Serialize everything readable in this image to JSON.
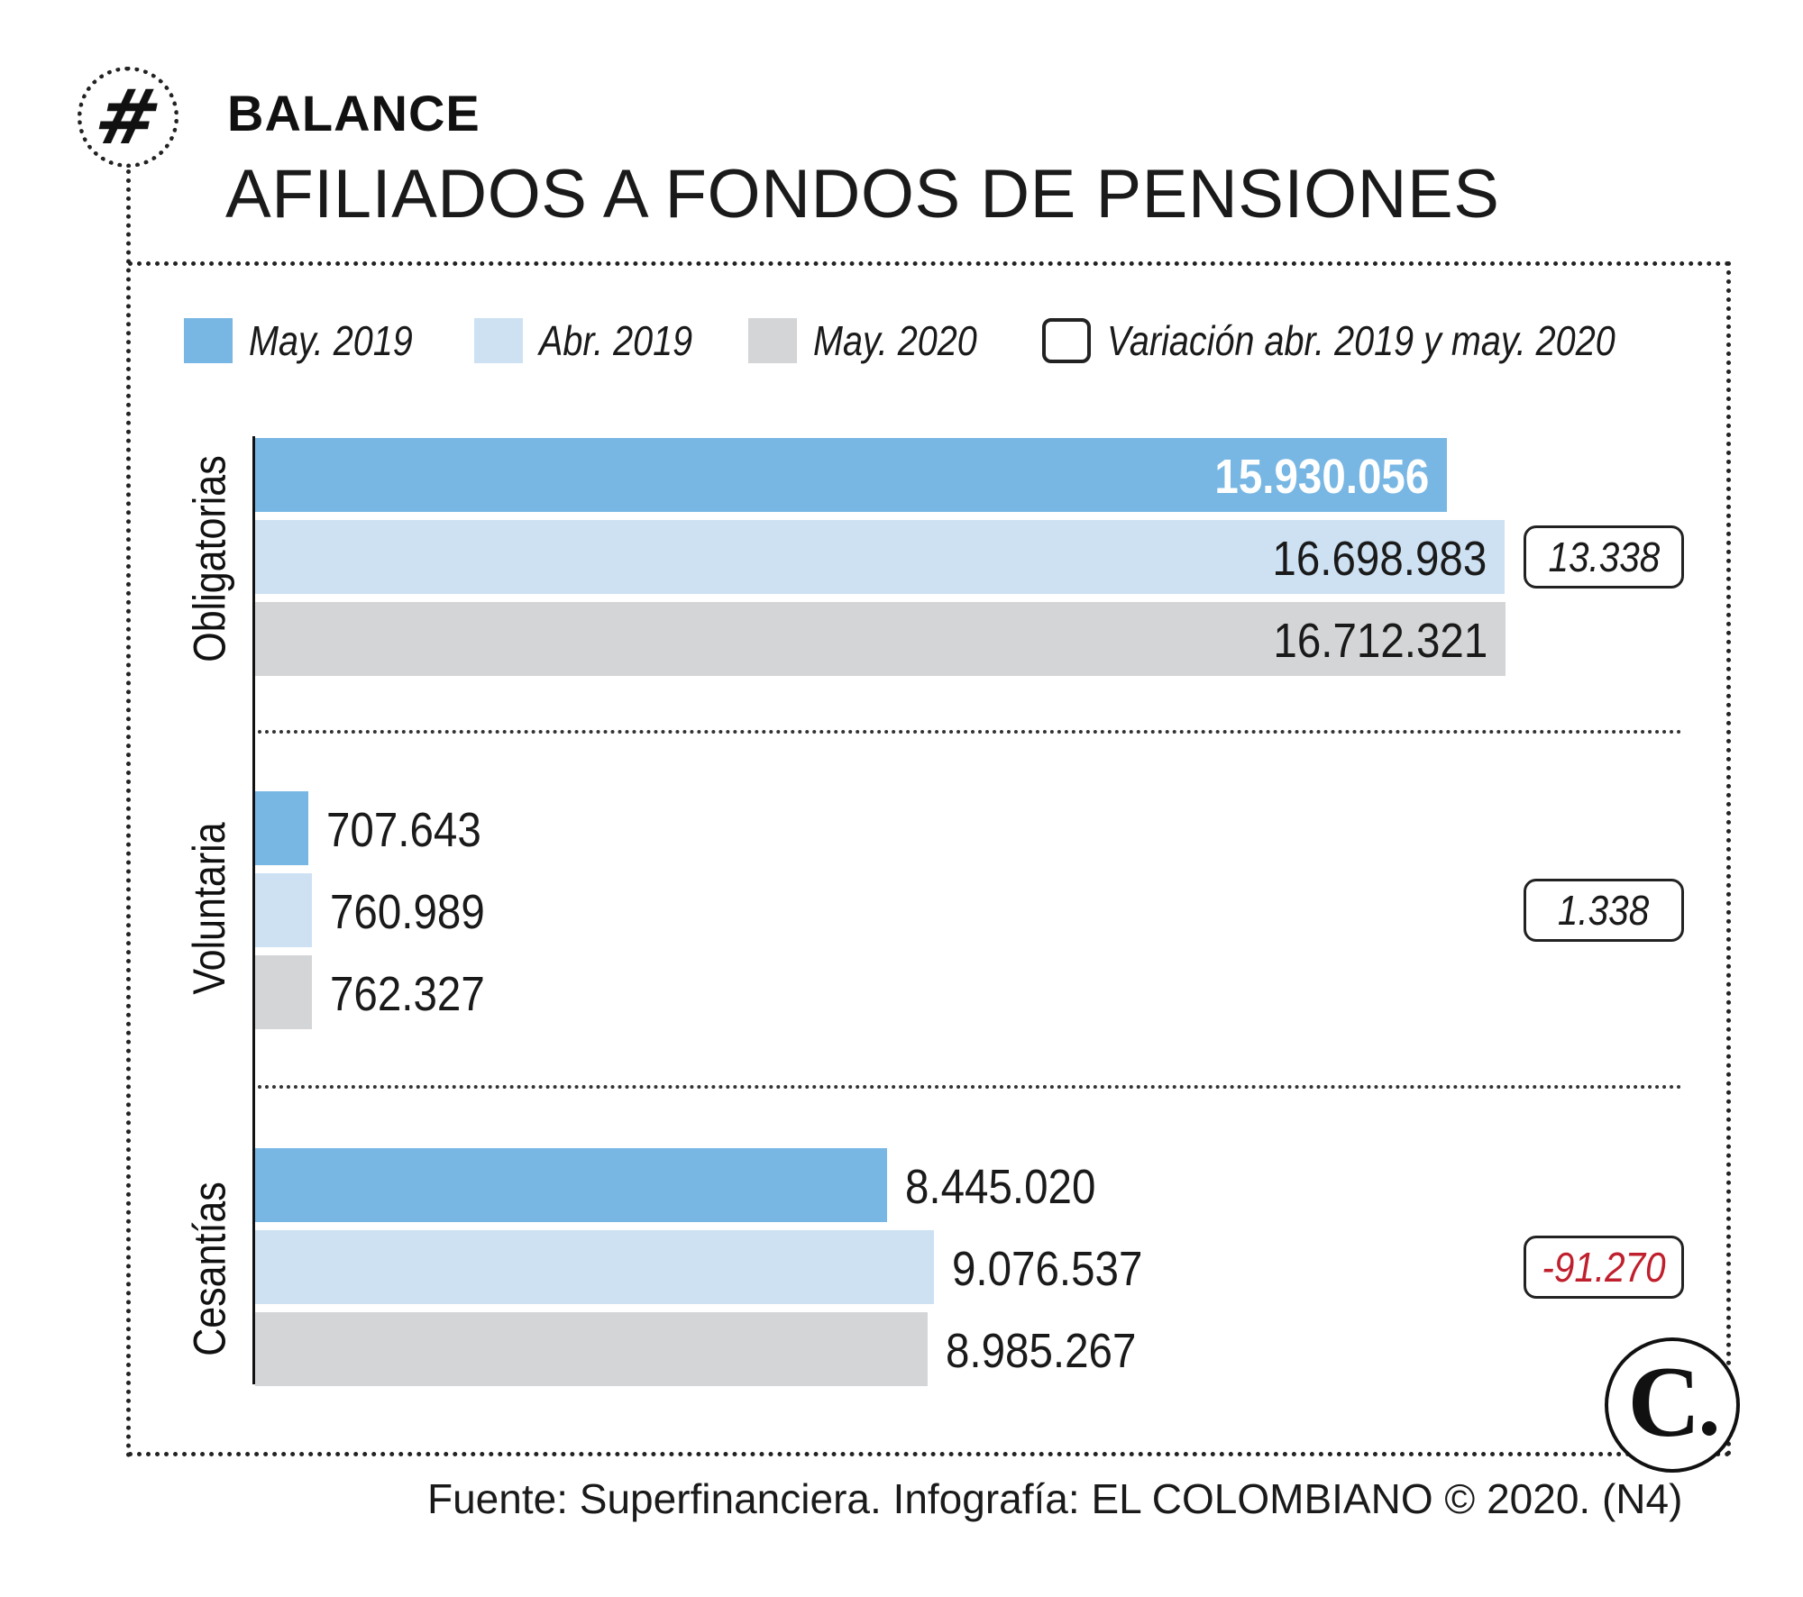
{
  "header": {
    "hash_symbol": "#",
    "section": "BALANCE",
    "title": "AFILIADOS A FONDOS DE PENSIONES"
  },
  "legend": [
    {
      "label": "May. 2019",
      "color": "#78b7e3"
    },
    {
      "label": "Abr. 2019",
      "color": "#cde1f3"
    },
    {
      "label": "May. 2020",
      "color": "#d4d5d7"
    },
    {
      "label": "Variación abr. 2019 y may. 2020",
      "color": "#ffffff"
    }
  ],
  "logo": {
    "letter": "C"
  },
  "footer": {
    "text": "Fuente: Superfinanciera. Infografía: EL COLOMBIANO © 2020. (N4)"
  },
  "chart_data": {
    "type": "bar",
    "orientation": "horizontal",
    "title": "AFILIADOS A FONDOS DE PENSIONES",
    "categories": [
      "Obligatorias",
      "Voluntaria",
      "Cesantías"
    ],
    "series": [
      {
        "name": "May. 2019",
        "color": "#78b7e3",
        "values": [
          15930056,
          707643,
          8445020
        ],
        "labels": [
          "15.930.056",
          "707.643",
          "8.445.020"
        ]
      },
      {
        "name": "Abr. 2019",
        "color": "#cde1f3",
        "values": [
          16698983,
          760989,
          9076537
        ],
        "labels": [
          "16.698.983",
          "760.989",
          "9.076.537"
        ]
      },
      {
        "name": "May. 2020",
        "color": "#d4d5d7",
        "values": [
          16712321,
          762327,
          8985267
        ],
        "labels": [
          "16.712.321",
          "762.327",
          "8.985.267"
        ]
      }
    ],
    "variation": {
      "name": "Variación abr. 2019 y may. 2020",
      "values": [
        13338,
        1338,
        -91270
      ],
      "labels": [
        "13.338",
        "1.338",
        "-91.270"
      ],
      "positive_color": "#1a1a1a",
      "negative_color": "#c0202e"
    },
    "xlim": [
      0,
      16712321
    ],
    "grid": false,
    "legend_position": "top"
  }
}
